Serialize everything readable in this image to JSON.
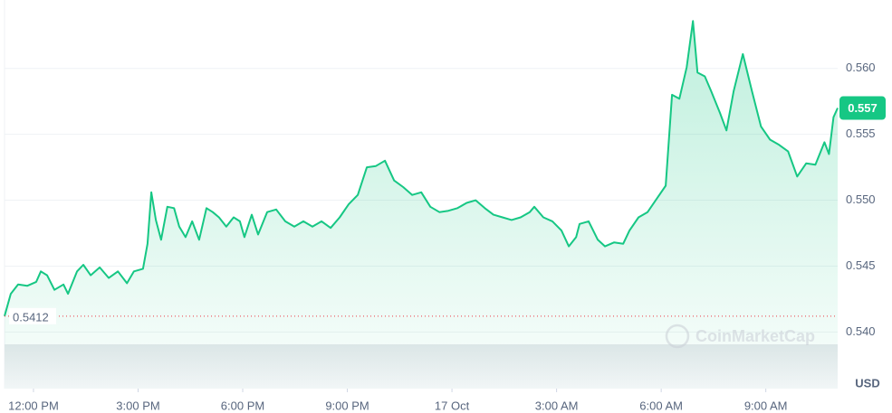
{
  "chart_data": {
    "type": "area",
    "x": [
      -0.83,
      -0.65,
      -0.44,
      -0.18,
      0.08,
      0.21,
      0.39,
      0.6,
      0.86,
      0.99,
      1.25,
      1.43,
      1.64,
      1.9,
      2.16,
      2.42,
      2.68,
      2.88,
      3.14,
      3.27,
      3.38,
      3.51,
      3.66,
      3.84,
      4.03,
      4.18,
      4.36,
      4.55,
      4.75,
      4.96,
      5.14,
      5.32,
      5.53,
      5.74,
      5.92,
      6.05,
      6.26,
      6.44,
      6.7,
      6.96,
      7.22,
      7.48,
      7.74,
      8,
      8.26,
      8.52,
      8.78,
      9.04,
      9.3,
      9.56,
      9.82,
      10.08,
      10.34,
      10.6,
      10.86,
      11.12,
      11.38,
      11.64,
      11.9,
      12.16,
      12.42,
      12.68,
      12.94,
      13.19,
      13.45,
      13.71,
      13.97,
      14.23,
      14.36,
      14.62,
      14.88,
      15.14,
      15.35,
      15.56,
      15.66,
      15.92,
      16.18,
      16.39,
      16.65,
      16.91,
      17.09,
      17.35,
      17.61,
      17.87,
      18.13,
      18.31,
      18.52,
      18.73,
      18.91,
      19.04,
      19.25,
      19.43,
      19.69,
      19.87,
      20.08,
      20.34,
      20.6,
      20.86,
      21.12,
      21.38,
      21.64,
      21.9,
      22.16,
      22.42,
      22.68,
      22.81,
      22.94,
      23.06
    ],
    "values": [
      0.5412,
      0.5429,
      0.5436,
      0.5435,
      0.5438,
      0.5446,
      0.5443,
      0.5432,
      0.5436,
      0.5429,
      0.5446,
      0.5451,
      0.5443,
      0.5449,
      0.5441,
      0.5446,
      0.5437,
      0.5446,
      0.5448,
      0.5467,
      0.5506,
      0.5485,
      0.547,
      0.5495,
      0.5494,
      0.548,
      0.5472,
      0.5484,
      0.547,
      0.5494,
      0.5491,
      0.5487,
      0.548,
      0.5487,
      0.5484,
      0.5472,
      0.5489,
      0.5474,
      0.5491,
      0.5493,
      0.5484,
      0.548,
      0.5484,
      0.548,
      0.5484,
      0.5479,
      0.5487,
      0.5497,
      0.5504,
      0.5525,
      0.5526,
      0.553,
      0.5515,
      0.551,
      0.5504,
      0.5506,
      0.5495,
      0.5491,
      0.5492,
      0.5494,
      0.5498,
      0.55,
      0.5494,
      0.5489,
      0.5487,
      0.5485,
      0.5487,
      0.5491,
      0.5495,
      0.5487,
      0.5484,
      0.5477,
      0.5465,
      0.5472,
      0.5482,
      0.5484,
      0.547,
      0.5465,
      0.5468,
      0.5467,
      0.5477,
      0.5487,
      0.5491,
      0.5501,
      0.5511,
      0.558,
      0.5577,
      0.5601,
      0.5636,
      0.5597,
      0.5594,
      0.5583,
      0.5566,
      0.5553,
      0.5583,
      0.5611,
      0.5583,
      0.5556,
      0.5546,
      0.5542,
      0.5537,
      0.5518,
      0.5528,
      0.5527,
      0.5544,
      0.5535,
      0.5563,
      0.557
    ],
    "color": "#16c784",
    "xlim": [
      -0.83,
      23.06
    ],
    "xticks": [
      {
        "value": 0,
        "label": "12:00 PM"
      },
      {
        "value": 3,
        "label": "3:00 PM"
      },
      {
        "value": 6,
        "label": "6:00 PM"
      },
      {
        "value": 9,
        "label": "9:00 PM"
      },
      {
        "value": 12,
        "label": "17 Oct"
      },
      {
        "value": 15,
        "label": "3:00 AM"
      },
      {
        "value": 18,
        "label": "6:00 AM"
      },
      {
        "value": 21,
        "label": "9:00 AM"
      }
    ],
    "ylim": [
      0.5357,
      0.5652
    ],
    "yticks": [
      {
        "value": 0.54,
        "label": "0.540"
      },
      0.545,
      {
        "value": 0.55,
        "label": "0.550"
      },
      0.555,
      {
        "value": 0.56,
        "label": "0.560"
      }
    ],
    "grid": true,
    "y_axis_label": "USD",
    "current_price": 0.557,
    "reference_price": 0.5412,
    "watermark": "CoinMarketCap"
  }
}
